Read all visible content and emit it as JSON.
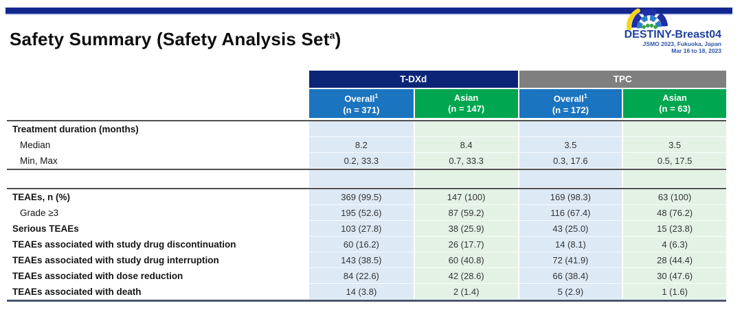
{
  "header": {
    "title_main": "Safety Summary (Safety Analysis Set",
    "title_sup": "a",
    "title_close": ")"
  },
  "logo": {
    "name": "DESTINY-Breast04",
    "conference": "JSMO 2023, Fukuoka, Japan",
    "dates": "Mar 16 to 18, 2023"
  },
  "table": {
    "colors": {
      "top_bar": "#12278f",
      "group_tdxd": "#0d2577",
      "group_tpc": "#7f7f7f",
      "col_overall_blue": "#1b74bf",
      "col_asian_green": "#00a650",
      "band_blue": "#dde9f5",
      "band_green": "#e4f2e6",
      "rule": "#4f4f4f"
    },
    "group_headers": [
      {
        "label": "T-DXd"
      },
      {
        "label": "TPC"
      }
    ],
    "column_headers": [
      {
        "label": "Overall",
        "sup": "1",
        "n": "(n = 371)"
      },
      {
        "label": "Asian",
        "sup": "",
        "n": "(n = 147)"
      },
      {
        "label": "Overall",
        "sup": "1",
        "n": "(n = 172)"
      },
      {
        "label": "Asian",
        "sup": "",
        "n": "(n = 63)"
      }
    ],
    "sections": [
      {
        "rows": [
          {
            "label": "Treatment duration (months)",
            "bold": true,
            "indent": false,
            "values": [
              "",
              "",
              "",
              ""
            ]
          },
          {
            "label": "Median",
            "bold": false,
            "indent": true,
            "values": [
              "8.2",
              "8.4",
              "3.5",
              "3.5"
            ]
          },
          {
            "label": "Min, Max",
            "bold": false,
            "indent": true,
            "values": [
              "0.2, 33.3",
              "0.7, 33.3",
              "0.3, 17.6",
              "0.5, 17.5"
            ]
          }
        ]
      },
      {
        "rows": [
          {
            "label": "TEAEs, n (%)",
            "bold": true,
            "indent": false,
            "values": [
              "369 (99.5)",
              "147 (100)",
              "169 (98.3)",
              "63 (100)"
            ]
          },
          {
            "label": "Grade ≥3",
            "bold": false,
            "indent": true,
            "values": [
              "195 (52.6)",
              "87 (59.2)",
              "116 (67.4)",
              "48 (76.2)"
            ]
          },
          {
            "label": "Serious TEAEs",
            "bold": true,
            "indent": false,
            "values": [
              "103 (27.8)",
              "38 (25.9)",
              "43 (25.0)",
              "15 (23.8)"
            ]
          },
          {
            "label": "TEAEs associated with study drug discontinuation",
            "bold": true,
            "indent": false,
            "values": [
              "60 (16.2)",
              "26 (17.7)",
              "14 (8.1)",
              "4 (6.3)"
            ]
          },
          {
            "label": "TEAEs associated with study drug interruption",
            "bold": true,
            "indent": false,
            "values": [
              "143 (38.5)",
              "60 (40.8)",
              "72 (41.9)",
              "28 (44.4)"
            ]
          },
          {
            "label": "TEAEs associated with dose reduction",
            "bold": true,
            "indent": false,
            "values": [
              "84 (22.6)",
              "42 (28.6)",
              "66 (38.4)",
              "30 (47.6)"
            ]
          },
          {
            "label": "TEAEs associated with death",
            "bold": true,
            "indent": false,
            "values": [
              "14 (3.8)",
              "2 (1.4)",
              "5 (2.9)",
              "1 (1.6)"
            ]
          }
        ]
      }
    ]
  }
}
